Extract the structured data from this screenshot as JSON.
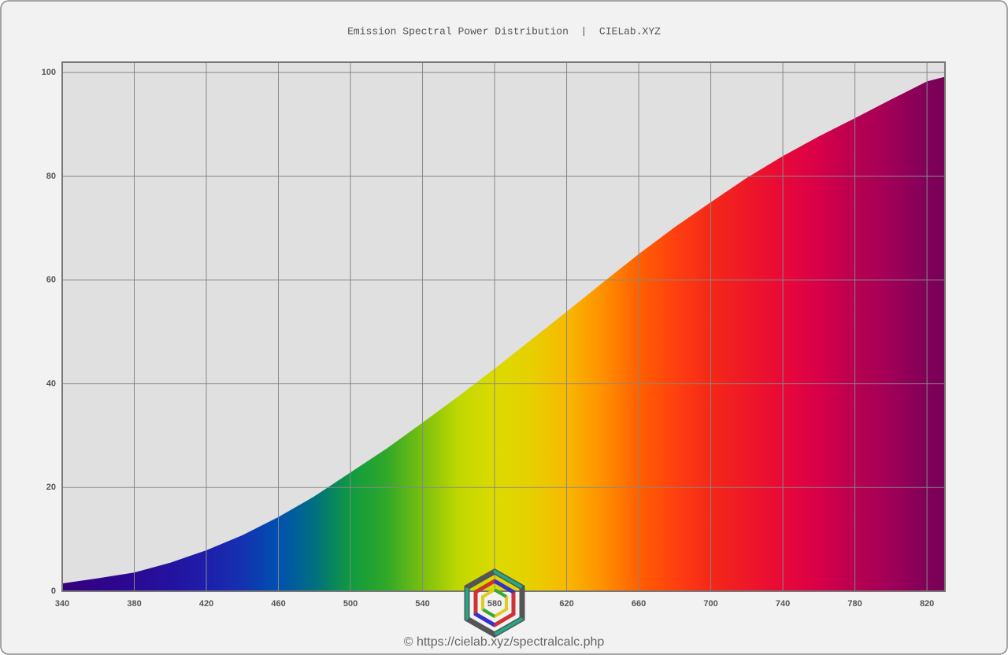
{
  "chart_data": {
    "type": "area",
    "title": "Emission Spectral Power Distribution  |  CIELab.XYZ",
    "footer": "© https://cielab.xyz/spectralcalc.php",
    "x": [
      340,
      360,
      380,
      400,
      420,
      440,
      460,
      480,
      500,
      520,
      540,
      560,
      580,
      600,
      620,
      640,
      660,
      680,
      700,
      720,
      740,
      760,
      780,
      800,
      820,
      830
    ],
    "series": [
      {
        "values": [
          1.5,
          2.5,
          3.6,
          5.5,
          7.9,
          10.8,
          14.3,
          18.3,
          22.9,
          27.5,
          32.5,
          37.6,
          42.9,
          48.4,
          53.9,
          59.5,
          65,
          70.2,
          75,
          79.7,
          83.9,
          87.7,
          91.2,
          94.8,
          98.3,
          99.2
        ],
        "colors": [
          "#38007a",
          "#30048a",
          "#2a0a94",
          "#2412a0",
          "#1e1eaa",
          "#1432b0",
          "#0050b0",
          "#00707f",
          "#109a40",
          "#30a828",
          "#7ac010",
          "#c0d800",
          "#dcda00",
          "#e6d000",
          "#f8b800",
          "#ff9000",
          "#ff6000",
          "#ff4010",
          "#f42818",
          "#ee1828",
          "#e80838",
          "#d80048",
          "#b80050",
          "#a00058",
          "#800058",
          "#780058"
        ]
      }
    ],
    "xlim": [
      340,
      830
    ],
    "ylim": [
      0,
      102
    ],
    "xticks": [
      340,
      380,
      420,
      460,
      500,
      540,
      580,
      620,
      660,
      700,
      740,
      780,
      820
    ],
    "yticks": [
      0,
      20,
      40,
      60,
      80,
      100
    ],
    "grid": true
  }
}
